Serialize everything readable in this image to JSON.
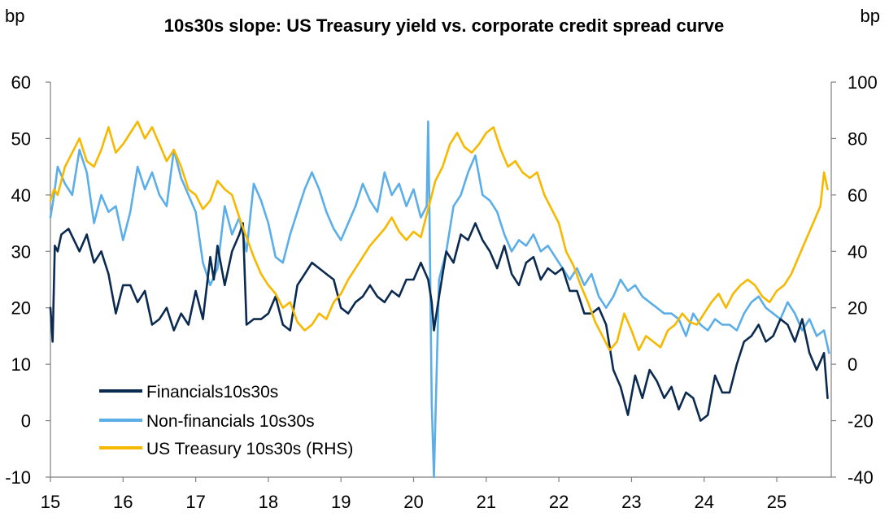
{
  "chart_data": {
    "type": "line",
    "title": "10s30s slope: US Treasury yield vs. corporate credit spread curve",
    "left_unit": "bp",
    "right_unit": "bp",
    "ylim_left": [
      -10,
      60
    ],
    "ylim_right": [
      -40,
      100
    ],
    "xlim": [
      2015,
      2025.75
    ],
    "grid": false,
    "legend_position": "bottom-left",
    "x_ticks": [
      {
        "value": 2015,
        "label": "15"
      },
      {
        "value": 2016,
        "label": "16"
      },
      {
        "value": 2017,
        "label": "17"
      },
      {
        "value": 2018,
        "label": "18"
      },
      {
        "value": 2019,
        "label": "19"
      },
      {
        "value": 2020,
        "label": "20"
      },
      {
        "value": 2021,
        "label": "21"
      },
      {
        "value": 2022,
        "label": "22"
      },
      {
        "value": 2023,
        "label": "23"
      },
      {
        "value": 2024,
        "label": "24"
      },
      {
        "value": 2025,
        "label": "25"
      }
    ],
    "y_ticks_left": [
      {
        "value": 60,
        "label": "60"
      },
      {
        "value": 50,
        "label": "50"
      },
      {
        "value": 40,
        "label": "40"
      },
      {
        "value": 30,
        "label": "30"
      },
      {
        "value": 20,
        "label": "20"
      },
      {
        "value": 10,
        "label": "10"
      },
      {
        "value": 0,
        "label": "0"
      },
      {
        "value": -10,
        "label": "-10"
      }
    ],
    "y_ticks_right": [
      {
        "value": 100,
        "label": "100"
      },
      {
        "value": 80,
        "label": "80"
      },
      {
        "value": 60,
        "label": "60"
      },
      {
        "value": 40,
        "label": "40"
      },
      {
        "value": 20,
        "label": "20"
      },
      {
        "value": 0,
        "label": "0"
      },
      {
        "value": -20,
        "label": "-20"
      },
      {
        "value": -40,
        "label": "-40"
      }
    ],
    "series": [
      {
        "name": "Financials10s30s",
        "color": "#0b2a4f",
        "axis": "left",
        "x": [
          2015.0,
          2015.03,
          2015.06,
          2015.1,
          2015.15,
          2015.25,
          2015.4,
          2015.5,
          2015.6,
          2015.7,
          2015.8,
          2015.9,
          2016.0,
          2016.1,
          2016.2,
          2016.3,
          2016.4,
          2016.5,
          2016.6,
          2016.7,
          2016.8,
          2016.9,
          2017.0,
          2017.1,
          2017.2,
          2017.25,
          2017.3,
          2017.4,
          2017.5,
          2017.6,
          2017.65,
          2017.7,
          2017.8,
          2017.9,
          2018.0,
          2018.1,
          2018.2,
          2018.3,
          2018.4,
          2018.5,
          2018.6,
          2018.7,
          2018.8,
          2018.9,
          2019.0,
          2019.1,
          2019.2,
          2019.3,
          2019.4,
          2019.5,
          2019.6,
          2019.7,
          2019.8,
          2019.9,
          2020.0,
          2020.1,
          2020.2,
          2020.25,
          2020.28,
          2020.35,
          2020.45,
          2020.55,
          2020.65,
          2020.75,
          2020.85,
          2020.95,
          2021.05,
          2021.15,
          2021.25,
          2021.35,
          2021.45,
          2021.55,
          2021.65,
          2021.75,
          2021.85,
          2021.95,
          2022.05,
          2022.15,
          2022.25,
          2022.35,
          2022.45,
          2022.55,
          2022.65,
          2022.75,
          2022.85,
          2022.95,
          2023.05,
          2023.15,
          2023.25,
          2023.35,
          2023.45,
          2023.55,
          2023.65,
          2023.75,
          2023.85,
          2023.95,
          2024.05,
          2024.15,
          2024.25,
          2024.35,
          2024.45,
          2024.55,
          2024.65,
          2024.75,
          2024.85,
          2024.95,
          2025.05,
          2025.15,
          2025.25,
          2025.35,
          2025.45,
          2025.55,
          2025.65,
          2025.7
        ],
        "values": [
          20,
          14,
          31,
          30,
          33,
          34,
          30,
          33,
          28,
          30,
          26,
          19,
          24,
          24,
          21,
          23,
          17,
          18,
          20,
          16,
          19,
          17,
          23,
          18,
          29,
          25,
          31,
          24,
          30,
          33,
          35,
          17,
          18,
          18,
          19,
          22,
          17,
          16,
          24,
          26,
          28,
          27,
          26,
          25,
          20,
          19,
          21,
          22,
          24,
          22,
          21,
          23,
          22,
          25,
          25,
          28,
          25,
          21,
          16,
          22,
          30,
          28,
          33,
          32,
          35,
          32,
          30,
          27,
          31,
          26,
          24,
          28,
          29,
          25,
          27,
          26,
          27,
          23,
          23,
          19,
          19,
          20,
          17,
          9,
          6,
          1,
          8,
          4,
          9,
          7,
          4,
          6,
          2,
          5,
          4,
          0,
          1,
          8,
          5,
          5,
          10,
          14,
          15,
          17,
          14,
          15,
          18,
          17,
          14,
          18,
          12,
          9,
          12,
          4
        ]
      },
      {
        "name": "Non-financials 10s30s",
        "color": "#5baee8",
        "axis": "left",
        "x": [
          2015.0,
          2015.05,
          2015.1,
          2015.2,
          2015.3,
          2015.4,
          2015.5,
          2015.6,
          2015.7,
          2015.8,
          2015.9,
          2016.0,
          2016.1,
          2016.2,
          2016.3,
          2016.4,
          2016.5,
          2016.6,
          2016.7,
          2016.8,
          2016.9,
          2017.0,
          2017.1,
          2017.2,
          2017.3,
          2017.4,
          2017.5,
          2017.6,
          2017.7,
          2017.8,
          2017.9,
          2018.0,
          2018.1,
          2018.2,
          2018.3,
          2018.4,
          2018.5,
          2018.6,
          2018.7,
          2018.8,
          2018.9,
          2019.0,
          2019.1,
          2019.2,
          2019.3,
          2019.4,
          2019.5,
          2019.6,
          2019.7,
          2019.8,
          2019.9,
          2020.0,
          2020.1,
          2020.18,
          2020.2,
          2020.22,
          2020.25,
          2020.28,
          2020.35,
          2020.45,
          2020.55,
          2020.65,
          2020.75,
          2020.85,
          2020.95,
          2021.05,
          2021.15,
          2021.25,
          2021.35,
          2021.45,
          2021.55,
          2021.65,
          2021.75,
          2021.85,
          2021.95,
          2022.05,
          2022.15,
          2022.25,
          2022.35,
          2022.45,
          2022.55,
          2022.65,
          2022.75,
          2022.85,
          2022.95,
          2023.05,
          2023.15,
          2023.25,
          2023.35,
          2023.45,
          2023.55,
          2023.65,
          2023.75,
          2023.85,
          2023.95,
          2024.05,
          2024.15,
          2024.25,
          2024.35,
          2024.45,
          2024.55,
          2024.65,
          2024.75,
          2024.85,
          2024.95,
          2025.05,
          2025.15,
          2025.25,
          2025.35,
          2025.45,
          2025.55,
          2025.65,
          2025.72
        ],
        "values": [
          36,
          40,
          45,
          42,
          40,
          48,
          44,
          35,
          40,
          37,
          38,
          32,
          37,
          45,
          41,
          44,
          40,
          38,
          48,
          43,
          40,
          37,
          28,
          24,
          27,
          38,
          33,
          36,
          30,
          42,
          39,
          35,
          29,
          28,
          33,
          37,
          41,
          44,
          41,
          37,
          34,
          32,
          35,
          38,
          42,
          39,
          37,
          44,
          40,
          42,
          38,
          41,
          36,
          38,
          53,
          35,
          3,
          -10,
          25,
          30,
          38,
          40,
          44,
          47,
          40,
          39,
          37,
          33,
          30,
          32,
          31,
          33,
          30,
          31,
          29,
          27,
          25,
          27,
          24,
          26,
          22,
          20,
          22,
          25,
          23,
          24,
          22,
          21,
          20,
          19,
          19,
          18,
          15,
          19,
          17,
          16,
          18,
          17,
          17,
          16,
          19,
          21,
          22,
          20,
          19,
          18,
          21,
          19,
          16,
          18,
          15,
          16,
          12
        ]
      },
      {
        "name": "US Treasury 10s30s (RHS)",
        "color": "#f7b800",
        "axis": "right",
        "x": [
          2015.0,
          2015.05,
          2015.1,
          2015.2,
          2015.3,
          2015.4,
          2015.5,
          2015.6,
          2015.7,
          2015.8,
          2015.9,
          2016.0,
          2016.1,
          2016.2,
          2016.3,
          2016.4,
          2016.5,
          2016.6,
          2016.7,
          2016.8,
          2016.9,
          2017.0,
          2017.1,
          2017.2,
          2017.3,
          2017.4,
          2017.5,
          2017.6,
          2017.7,
          2017.8,
          2017.9,
          2018.0,
          2018.1,
          2018.2,
          2018.3,
          2018.4,
          2018.5,
          2018.6,
          2018.7,
          2018.8,
          2018.9,
          2019.0,
          2019.1,
          2019.2,
          2019.3,
          2019.4,
          2019.5,
          2019.6,
          2019.7,
          2019.8,
          2019.9,
          2020.0,
          2020.1,
          2020.2,
          2020.3,
          2020.4,
          2020.5,
          2020.6,
          2020.7,
          2020.8,
          2020.9,
          2021.0,
          2021.1,
          2021.2,
          2021.3,
          2021.4,
          2021.5,
          2021.6,
          2021.7,
          2021.8,
          2021.9,
          2022.0,
          2022.1,
          2022.2,
          2022.3,
          2022.4,
          2022.5,
          2022.6,
          2022.7,
          2022.8,
          2022.9,
          2023.0,
          2023.1,
          2023.2,
          2023.3,
          2023.4,
          2023.5,
          2023.6,
          2023.7,
          2023.8,
          2023.9,
          2024.0,
          2024.1,
          2024.2,
          2024.3,
          2024.4,
          2024.5,
          2024.6,
          2024.7,
          2024.8,
          2024.9,
          2025.0,
          2025.1,
          2025.2,
          2025.3,
          2025.4,
          2025.5,
          2025.6,
          2025.65,
          2025.7
        ],
        "values": [
          58,
          62,
          60,
          70,
          75,
          80,
          72,
          70,
          76,
          84,
          75,
          78,
          82,
          86,
          80,
          84,
          78,
          72,
          76,
          70,
          62,
          60,
          55,
          58,
          65,
          62,
          60,
          52,
          45,
          38,
          32,
          28,
          25,
          20,
          22,
          15,
          12,
          14,
          18,
          16,
          22,
          25,
          30,
          34,
          38,
          42,
          45,
          48,
          52,
          47,
          44,
          47,
          45,
          55,
          65,
          70,
          78,
          82,
          77,
          75,
          78,
          82,
          84,
          76,
          70,
          72,
          68,
          66,
          68,
          60,
          55,
          50,
          40,
          35,
          28,
          22,
          15,
          10,
          5,
          8,
          18,
          12,
          5,
          10,
          8,
          6,
          12,
          14,
          18,
          15,
          14,
          18,
          22,
          25,
          20,
          25,
          28,
          30,
          28,
          24,
          22,
          26,
          28,
          32,
          38,
          44,
          50,
          56,
          68,
          62
        ]
      }
    ]
  }
}
